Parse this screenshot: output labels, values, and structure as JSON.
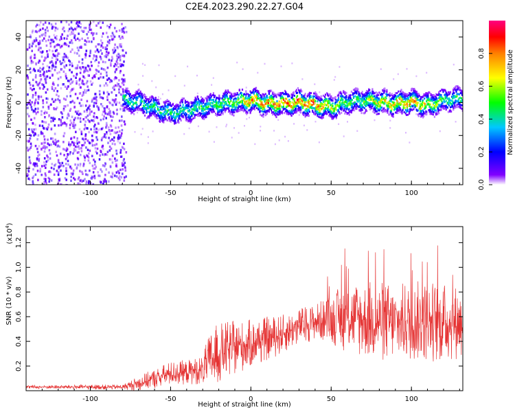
{
  "title": "C2E4.2023.290.22.27.G04",
  "chart_data": [
    {
      "type": "heatmap",
      "title": "C2E4.2023.290.22.27.G04",
      "xlabel": "Height of straight line (km)",
      "ylabel": "Frequency (Hz)",
      "xlim": [
        -140,
        132
      ],
      "ylim": [
        -50,
        50
      ],
      "xticks": [
        -100,
        -50,
        0,
        50,
        100
      ],
      "yticks": [
        -40,
        -20,
        0,
        20,
        40
      ],
      "colorbar": {
        "label": "Normalized spectral amplitude",
        "range": [
          0,
          1
        ],
        "ticks": [
          0.0,
          0.2,
          0.4,
          0.6,
          0.8
        ],
        "colormap": [
          "#ffffff",
          "#8000ff",
          "#0000ff",
          "#00c8ff",
          "#00ff00",
          "#ffff00",
          "#ff8000",
          "#ff0000",
          "#ff0080"
        ]
      },
      "noise_region_x": [
        -140,
        -80
      ],
      "signal_band": {
        "x": [
          -80,
          -70,
          -60,
          -50,
          -40,
          -30,
          -20,
          -10,
          0,
          10,
          20,
          30,
          40,
          50,
          60,
          70,
          80,
          90,
          100,
          110,
          120,
          130
        ],
        "center_hz": [
          2,
          1,
          -3,
          -6,
          -4,
          -2,
          0,
          1,
          2,
          0,
          0,
          1,
          -1,
          -2,
          1,
          2,
          1,
          0,
          1,
          -1,
          2,
          3
        ],
        "peak_amplitude": [
          0.5,
          0.45,
          0.5,
          0.5,
          0.5,
          0.5,
          0.55,
          0.6,
          0.85,
          0.85,
          0.9,
          0.9,
          0.9,
          0.7,
          0.55,
          0.55,
          0.75,
          0.8,
          0.85,
          0.7,
          0.55,
          0.5
        ]
      }
    },
    {
      "type": "line",
      "xlabel": "Height of straight line (km)",
      "ylabel": "SNR (10 * v/v)",
      "scale_label": "(x10",
      "scale_exponent": "4",
      "scale_close": ")",
      "xlim": [
        -140,
        132
      ],
      "ylim": [
        0,
        1.33
      ],
      "xticks": [
        -100,
        -50,
        0,
        50,
        100
      ],
      "yticks": [
        0.2,
        0.4,
        0.6,
        0.8,
        1.0,
        1.2
      ],
      "ytick_labels": [
        "0.2",
        "0.4",
        "0.6",
        "0.8",
        "1.0",
        "1.2"
      ],
      "color": "#e53333",
      "envelope": {
        "x": [
          -140,
          -120,
          -100,
          -80,
          -70,
          -60,
          -50,
          -40,
          -30,
          -25,
          -20,
          -10,
          0,
          10,
          20,
          30,
          40,
          50,
          60,
          70,
          80,
          90,
          100,
          110,
          120,
          132
        ],
        "mean": [
          0.03,
          0.03,
          0.03,
          0.03,
          0.06,
          0.1,
          0.14,
          0.15,
          0.17,
          0.25,
          0.3,
          0.35,
          0.38,
          0.42,
          0.46,
          0.52,
          0.56,
          0.58,
          0.6,
          0.58,
          0.56,
          0.55,
          0.56,
          0.57,
          0.55,
          0.56
        ],
        "spread": [
          0.015,
          0.015,
          0.02,
          0.02,
          0.06,
          0.08,
          0.1,
          0.1,
          0.12,
          0.25,
          0.25,
          0.22,
          0.2,
          0.18,
          0.16,
          0.15,
          0.15,
          0.2,
          0.3,
          0.32,
          0.34,
          0.32,
          0.33,
          0.34,
          0.33,
          0.3
        ]
      }
    }
  ]
}
